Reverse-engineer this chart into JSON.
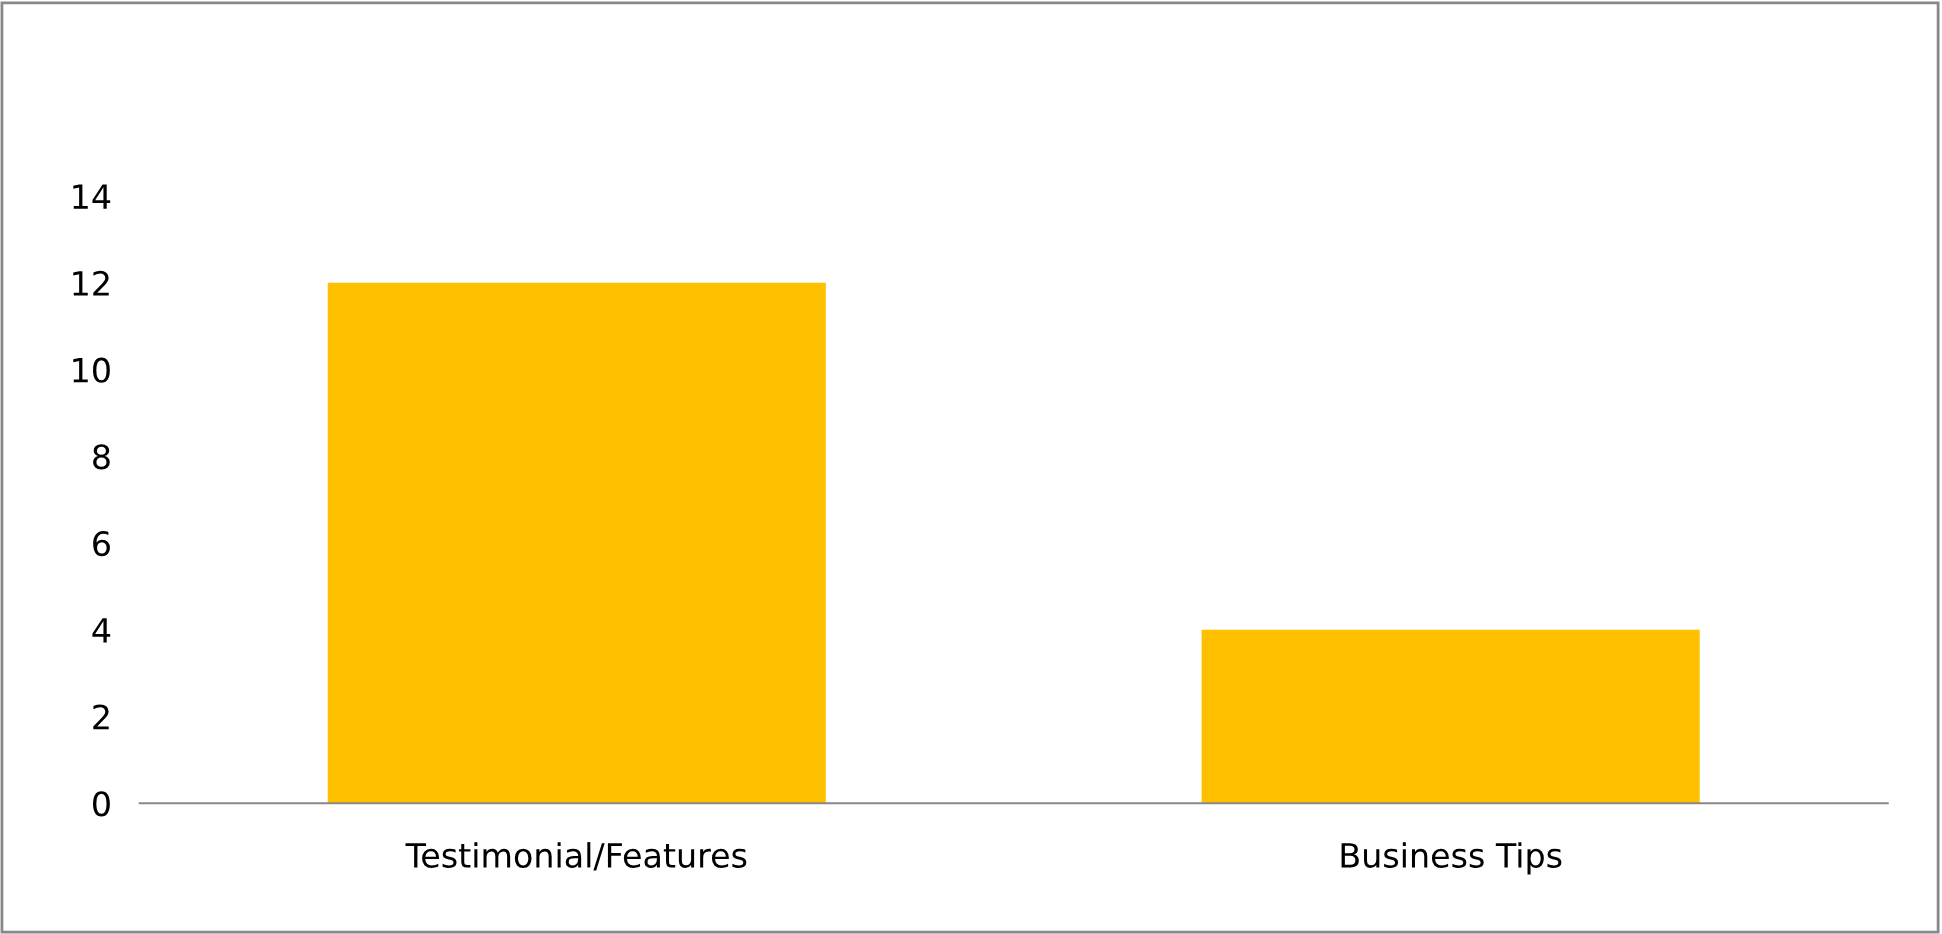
{
  "chart_data": {
    "type": "bar",
    "categories": [
      "Testimonial/Features",
      "Business Tips"
    ],
    "values": [
      12,
      4
    ],
    "color": "#ffc000",
    "ylim": [
      0,
      14
    ],
    "yticks": [
      0,
      2,
      4,
      6,
      8,
      10,
      12,
      14
    ],
    "grid": false
  }
}
